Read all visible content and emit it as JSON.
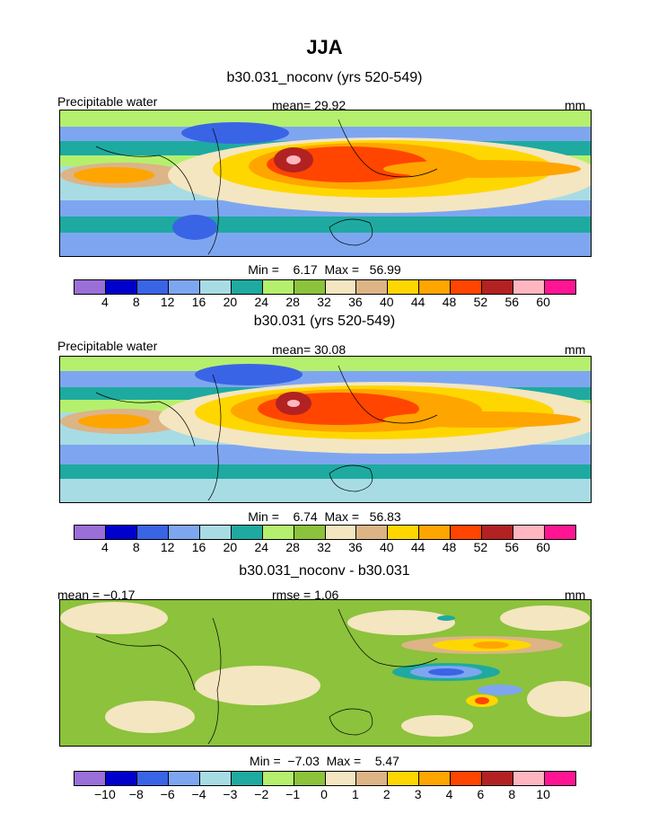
{
  "season": "JJA",
  "panels": [
    {
      "subtitle": "b30.031_noconv (yrs 520-549)",
      "left_label": "Precipitable water",
      "center_label": "mean=  29.92",
      "right_label": "mm",
      "min_max": "Min =    6.17  Max =   56.99",
      "ticks": [
        "4",
        "8",
        "12",
        "16",
        "20",
        "24",
        "28",
        "32",
        "36",
        "40",
        "44",
        "48",
        "52",
        "56",
        "60"
      ]
    },
    {
      "subtitle": "b30.031 (yrs 520-549)",
      "left_label": "Precipitable water",
      "center_label": "mean=  30.08",
      "right_label": "mm",
      "min_max": "Min =    6.74  Max =   56.83",
      "ticks": [
        "4",
        "8",
        "12",
        "16",
        "20",
        "24",
        "28",
        "32",
        "36",
        "40",
        "44",
        "48",
        "52",
        "56",
        "60"
      ]
    },
    {
      "subtitle": "b30.031_noconv - b30.031",
      "left_label": "mean =  −0.17",
      "center_label": "rmse =   1.06",
      "right_label": "mm",
      "min_max": "Min =  −7.03  Max =    5.47",
      "ticks": [
        "−10",
        "−8",
        "−6",
        "−4",
        "−3",
        "−2",
        "−1",
        "0",
        "1",
        "2",
        "3",
        "4",
        "6",
        "8",
        "10"
      ]
    }
  ],
  "colors": {
    "scale": [
      "#9a6fd8",
      "#0000cc",
      "#3a64e6",
      "#7ea6f0",
      "#a8dce4",
      "#1eaaa0",
      "#b4f06e",
      "#8cc23c",
      "#f4e6c0",
      "#dcb486",
      "#ffd700",
      "#ffa500",
      "#ff4500",
      "#b22222",
      "#ffb6c1",
      "#ff1493"
    ]
  }
}
